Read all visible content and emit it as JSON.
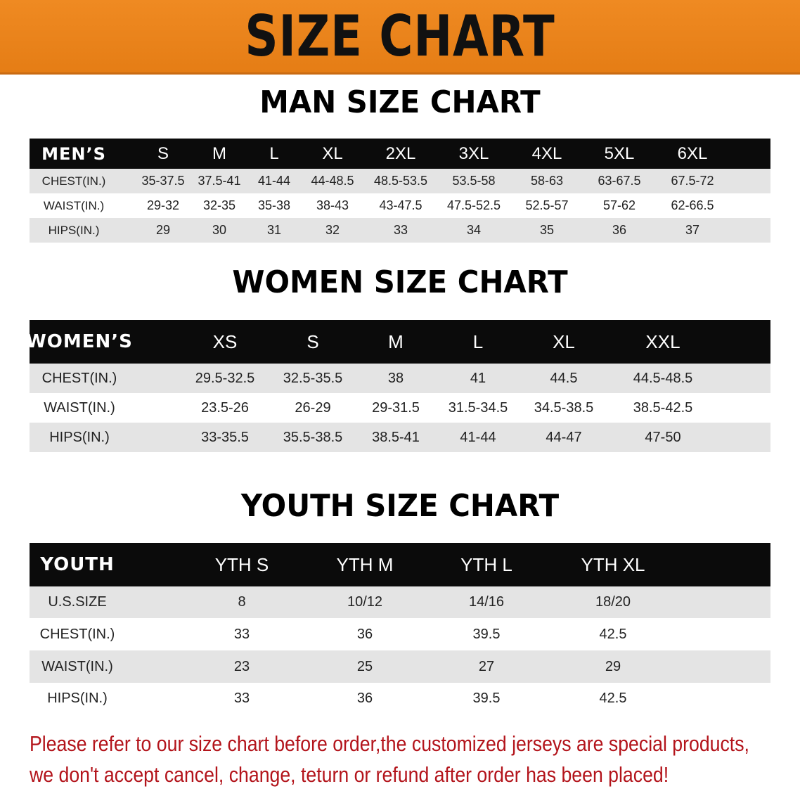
{
  "banner": {
    "title": "SIZE CHART",
    "color": "#e8821a"
  },
  "men": {
    "title": "MAN SIZE CHART",
    "header": [
      "MEN’S",
      "S",
      "M",
      "L",
      "XL",
      "2XL",
      "3XL",
      "4XL",
      "5XL",
      "6XL"
    ],
    "rows": [
      [
        "CHEST(IN.)",
        "35-37.5",
        "37.5-41",
        "41-44",
        "44-48.5",
        "48.5-53.5",
        "53.5-58",
        "58-63",
        "63-67.5",
        "67.5-72"
      ],
      [
        "WAIST(IN.)",
        "29-32",
        "32-35",
        "35-38",
        "38-43",
        "43-47.5",
        "47.5-52.5",
        "52.5-57",
        "57-62",
        "62-66.5"
      ],
      [
        "HIPS(IN.)",
        "29",
        "30",
        "31",
        "32",
        "33",
        "34",
        "35",
        "36",
        "37"
      ]
    ]
  },
  "women": {
    "title": "WOMEN SIZE CHART",
    "header": [
      "WOMEN’S",
      "XS",
      "S",
      "M",
      "L",
      "XL",
      "XXL"
    ],
    "rows": [
      [
        "CHEST(IN.)",
        "29.5-32.5",
        "32.5-35.5",
        "38",
        "41",
        "44.5",
        "44.5-48.5"
      ],
      [
        "WAIST(IN.)",
        "23.5-26",
        "26-29",
        "29-31.5",
        "31.5-34.5",
        "34.5-38.5",
        "38.5-42.5"
      ],
      [
        "HIPS(IN.)",
        "33-35.5",
        "35.5-38.5",
        "38.5-41",
        "41-44",
        "44-47",
        "47-50"
      ]
    ]
  },
  "youth": {
    "title": "YOUTH SIZE CHART",
    "header": [
      "YOUTH",
      "YTH S",
      "YTH M",
      "YTH L",
      "YTH XL"
    ],
    "rows": [
      [
        "U.S.SIZE",
        "8",
        "10/12",
        "14/16",
        "18/20"
      ],
      [
        "CHEST(IN.)",
        "33",
        "36",
        "39.5",
        "42.5"
      ],
      [
        "WAIST(IN.)",
        "23",
        "25",
        "27",
        "29"
      ],
      [
        "HIPS(IN.)",
        "33",
        "36",
        "39.5",
        "42.5"
      ]
    ]
  },
  "notice": {
    "line1": "Please refer to our size chart before order,the customized jerseys are special products,",
    "line2": "we don't accept cancel, change, teturn or refund after order has been placed!"
  }
}
